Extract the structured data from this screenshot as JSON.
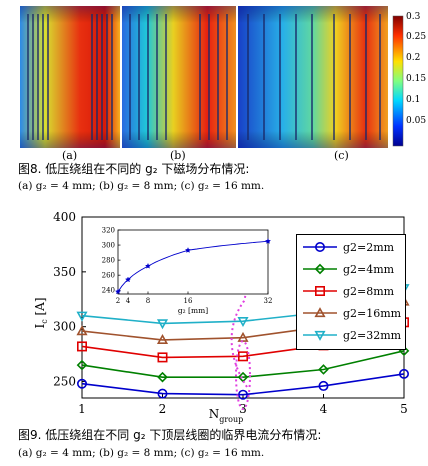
{
  "figure8": {
    "panels": [
      "(a)",
      "(b)",
      "(c)"
    ],
    "colorbar_ticks": [
      "0.3",
      "0.25",
      "0.2",
      "0.15",
      "0.1",
      "0.05"
    ],
    "caption": "图8. 低压绕组在不同的 g₂ 下磁场分布情况:",
    "subcaption": "(a) g₂ = 4 mm; (b) g₂ = 8 mm; (c) g₂ = 16 mm."
  },
  "figure9": {
    "caption": "图9. 低压绕组在不同 g₂ 下顶层线圈的临界电流分布情况:",
    "subcaption": "(a) g₂ = 4 mm; (b) g₂ = 8 mm; (c) g₂ = 16 mm."
  },
  "chart_data": [
    {
      "type": "line",
      "xlabel": "N_group",
      "ylabel": "I_c [A]",
      "x": [
        1,
        2,
        3,
        4,
        5
      ],
      "xticks": [
        "1",
        "2",
        "3",
        "4",
        "5"
      ],
      "yticks": [
        "250",
        "300",
        "350",
        "400"
      ],
      "xlim": [
        1,
        5
      ],
      "ylim": [
        235,
        400
      ],
      "legend_position": "upper-right",
      "series": [
        {
          "name": "g2=2mm",
          "color": "#0000cc",
          "marker": "circle",
          "values": [
            248,
            239,
            238,
            246,
            257
          ]
        },
        {
          "name": "g2=4mm",
          "color": "#008000",
          "marker": "diamond",
          "values": [
            265,
            254,
            254,
            261,
            278
          ]
        },
        {
          "name": "g2=8mm",
          "color": "#e00000",
          "marker": "square",
          "values": [
            282,
            272,
            273,
            283,
            304
          ]
        },
        {
          "name": "g2=16mm",
          "color": "#a0522d",
          "marker": "triangle-up",
          "values": [
            296,
            288,
            290,
            300,
            323
          ]
        },
        {
          "name": "g2=32mm",
          "color": "#20b0c8",
          "marker": "triangle-down",
          "values": [
            310,
            303,
            305,
            313,
            335
          ]
        }
      ]
    },
    {
      "type": "line",
      "xlabel": "g₂ [mm]",
      "ylabel": "",
      "x": [
        2,
        4,
        8,
        16,
        32
      ],
      "xticks": [
        "2",
        "4",
        "8",
        "16",
        "32"
      ],
      "yticks": [
        "240",
        "260",
        "280",
        "300",
        "320"
      ],
      "xlim": [
        2,
        32
      ],
      "ylim": [
        235,
        320
      ],
      "series": [
        {
          "name": "",
          "color": "#0000cc",
          "marker": "star",
          "values": [
            238,
            254,
            272,
            293,
            305
          ]
        }
      ]
    }
  ]
}
